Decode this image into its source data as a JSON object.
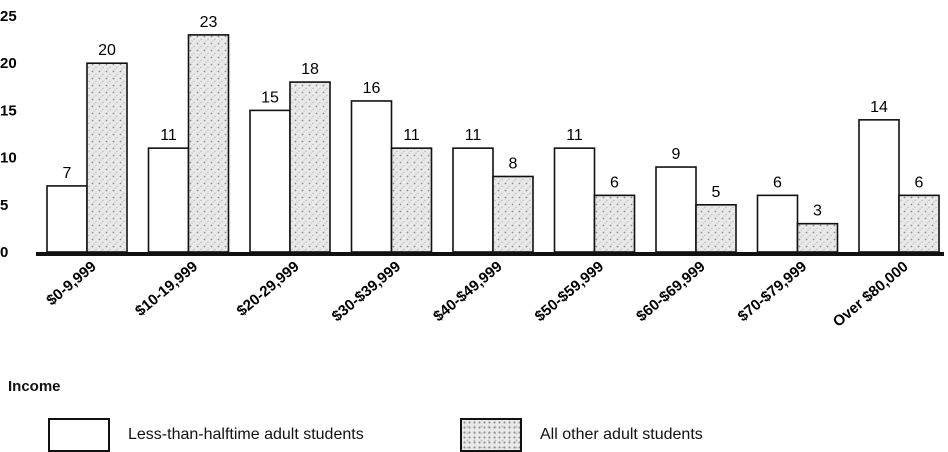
{
  "chart_data": {
    "type": "bar",
    "categories": [
      "$0-9,999",
      "$10-19,999",
      "$20-29,999",
      "$30-$39,999",
      "$40-$49,999",
      "$50-$59,999",
      "$60-$69,999",
      "$70-$79,999",
      "Over $80,000"
    ],
    "series": [
      {
        "name": "Less-than-halftime adult students",
        "values": [
          7,
          11,
          15,
          16,
          11,
          11,
          9,
          6,
          14
        ]
      },
      {
        "name": "All other adult students",
        "values": [
          20,
          23,
          18,
          11,
          8,
          6,
          5,
          3,
          6
        ]
      }
    ],
    "ylim": [
      0,
      25
    ],
    "yticks": [
      0,
      5,
      10,
      15,
      20,
      25
    ],
    "xlabel": "Income",
    "ylabel": "",
    "title": "",
    "grid": false,
    "legend_position": "bottom-left",
    "colors": {
      "series1_fill": "#ffffff",
      "series2_fill": "#e6e6e6",
      "stroke": "#111111",
      "pattern_dot": "#8d8d8d"
    }
  }
}
